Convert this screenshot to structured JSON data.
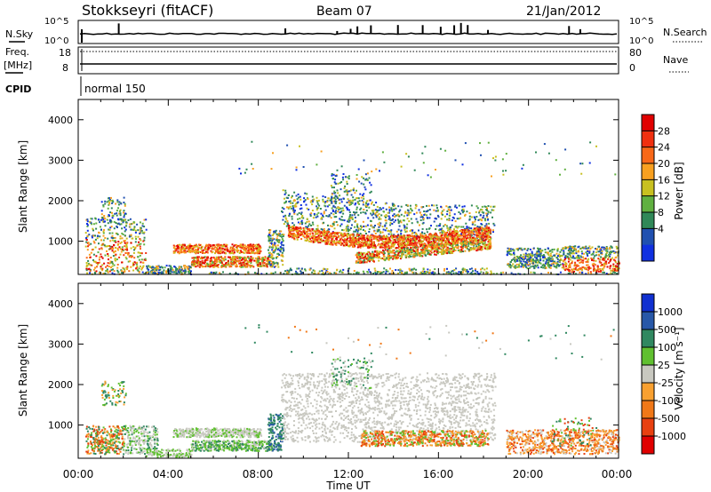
{
  "header": {
    "station": "Stokkseyri (fitACF)",
    "beam": "Beam 07",
    "date": "21/Jan/2012"
  },
  "aux": {
    "nsky_label": "N.Sky",
    "nsky_ticks": [
      "10^5",
      "10^0"
    ],
    "nsearch_label": "N.Search",
    "nsearch_ticks": [
      "10^5",
      "10^0"
    ],
    "freq_label_1": "Freq.",
    "freq_label_2": "[MHz]",
    "freq_ticks": [
      "18",
      "8"
    ],
    "nave_label": "Nave",
    "nave_ticks": [
      "80",
      "0"
    ],
    "cpid_label": "CPID",
    "cpid_text": "normal 150"
  },
  "axes": {
    "ylabel": "Slant Range [km]",
    "yticks": [
      "4000",
      "3000",
      "2000",
      "1000"
    ],
    "xlabel": "Time UT",
    "xticks": [
      "00:00",
      "04:00",
      "08:00",
      "12:00",
      "16:00",
      "20:00",
      "00:00"
    ]
  },
  "colorbars": {
    "power": {
      "label": "Power [dB]",
      "ticks": [
        "28",
        "24",
        "20",
        "16",
        "12",
        "8",
        "4"
      ],
      "colors": [
        "#e00000",
        "#f03010",
        "#f86818",
        "#f8a020",
        "#c8c020",
        "#60b040",
        "#308858",
        "#2050b0",
        "#1030e0"
      ]
    },
    "velocity": {
      "label": "Velocity [m s⁻¹]",
      "ticks": [
        "1000",
        "500",
        "100",
        "25",
        "-25",
        "-100",
        "-500",
        "-1000"
      ],
      "colors": [
        "#1030d0",
        "#2858a8",
        "#308860",
        "#60c030",
        "#c8c8c0",
        "#f8a030",
        "#f07818",
        "#e84010",
        "#e00000"
      ]
    }
  },
  "chart_data": [
    {
      "type": "heatmap",
      "name": "Power [dB]",
      "xlabel": "Time UT",
      "ylabel": "Slant Range [km]",
      "xlim_hours": [
        0,
        24
      ],
      "ylim_km": [
        180,
        4500
      ],
      "clim": [
        0,
        32
      ],
      "scatter_regions": [
        {
          "t": [
            0.3,
            3.0
          ],
          "r": [
            300,
            1600
          ],
          "power": "8-28"
        },
        {
          "t": [
            1.0,
            2.0
          ],
          "r": [
            1600,
            2100
          ],
          "power": "4-12"
        },
        {
          "t": [
            3.0,
            5.0
          ],
          "r": [
            250,
            450
          ],
          "power": "4-12"
        },
        {
          "t": [
            4.2,
            8.0
          ],
          "r": [
            720,
            950
          ],
          "power": "16-28"
        },
        {
          "t": [
            5.0,
            8.5
          ],
          "r": [
            380,
            620
          ],
          "power": "12-28"
        },
        {
          "t": [
            8.5,
            9.0
          ],
          "r": [
            400,
            1300
          ],
          "power": "4-16"
        },
        {
          "t": [
            9.0,
            18.5
          ],
          "r": [
            300,
            2300
          ],
          "power": "4-28"
        },
        {
          "t": [
            9.5,
            13.0
          ],
          "r": [
            1000,
            1400
          ],
          "power": "16-28"
        },
        {
          "t": [
            12.5,
            18.2
          ],
          "r": [
            500,
            1100
          ],
          "power": "12-28"
        },
        {
          "t": [
            19.0,
            21.5
          ],
          "r": [
            400,
            800
          ],
          "power": "4-20"
        },
        {
          "t": [
            21.5,
            24.0
          ],
          "r": [
            300,
            900
          ],
          "power": "8-28"
        }
      ]
    },
    {
      "type": "heatmap",
      "name": "Velocity [m s⁻¹]",
      "xlabel": "Time UT",
      "ylabel": "Slant Range [km]",
      "xlim_hours": [
        0,
        24
      ],
      "ylim_km": [
        180,
        4500
      ],
      "clim": [
        -1000,
        1000
      ],
      "scatter_regions": [
        {
          "t": [
            0.3,
            2.0
          ],
          "r": [
            300,
            1000
          ],
          "velocity": "-100 to -500"
        },
        {
          "t": [
            2.0,
            3.5
          ],
          "r": [
            300,
            1000
          ],
          "velocity": "-25 to 100"
        },
        {
          "t": [
            4.2,
            8.0
          ],
          "r": [
            700,
            950
          ],
          "velocity": "-25 to 25"
        },
        {
          "t": [
            5.0,
            8.5
          ],
          "r": [
            400,
            650
          ],
          "velocity": "25 to 100"
        },
        {
          "t": [
            8.5,
            9.0
          ],
          "r": [
            400,
            1300
          ],
          "velocity": "100 to 500"
        },
        {
          "t": [
            9.0,
            18.5
          ],
          "r": [
            300,
            2300
          ],
          "velocity": "-25 to 25"
        },
        {
          "t": [
            12.5,
            18.2
          ],
          "r": [
            500,
            900
          ],
          "velocity": "-25 to -500"
        },
        {
          "t": [
            19.0,
            24.0
          ],
          "r": [
            300,
            900
          ],
          "velocity": "-100 to -500"
        }
      ]
    }
  ]
}
